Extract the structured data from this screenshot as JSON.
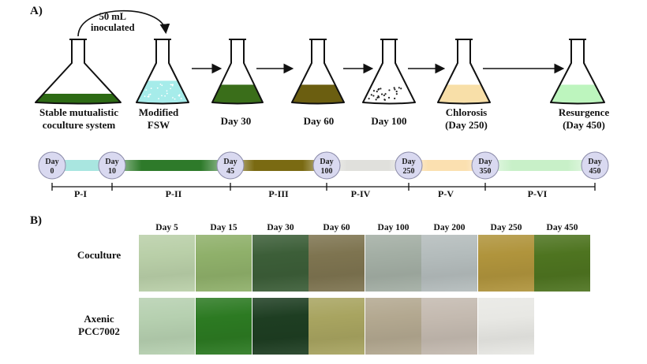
{
  "panel_a": {
    "letter": "A)",
    "inoculation_note": [
      "50 mL",
      "inoculated"
    ],
    "flasks": [
      {
        "label": [
          "Stable mutualistic",
          "coculture system"
        ],
        "fill": "#2d6a14",
        "level": 0.22,
        "speckled": false
      },
      {
        "label": [
          "Modified",
          "FSW"
        ],
        "fill": "#a6ecea",
        "level": 0.55,
        "speckled": true
      },
      {
        "label": [
          "Day 30"
        ],
        "fill": "#3a6e1a",
        "level": 0.45,
        "speckled": false
      },
      {
        "label": [
          "Day 60"
        ],
        "fill": "#6b5e10",
        "level": 0.45,
        "speckled": false
      },
      {
        "label": [
          "Day 100"
        ],
        "fill": "#ffffff",
        "level": 0.45,
        "speckled": true
      },
      {
        "label": [
          "Chlorosis",
          "(Day 250)"
        ],
        "fill": "#f8dfa8",
        "level": 0.45,
        "speckled": false
      },
      {
        "label": [
          "Resurgence",
          "(Day 450)"
        ],
        "fill": "#bdf5be",
        "level": 0.45,
        "speckled": false
      }
    ],
    "timeline": {
      "days": [
        "0",
        "10",
        "45",
        "100",
        "250",
        "350",
        "450"
      ],
      "day_prefix": "Day",
      "segment_colors": [
        "#a9e6e0",
        "#2e7a2a",
        "#7a6a12",
        "#e0e0dc",
        "#fbe0b0",
        "#c8f0c8"
      ],
      "phases": [
        "P-I",
        "P-II",
        "P-III",
        "P-IV",
        "P-V",
        "P-VI"
      ]
    }
  },
  "panel_b": {
    "letter": "B)",
    "columns": [
      "Day 5",
      "Day 15",
      "Day 30",
      "Day 60",
      "Day 100",
      "Day 200",
      "Day 250",
      "Day 450"
    ],
    "rows": [
      {
        "label": [
          "Coculture"
        ],
        "colors": [
          "#b9cfa8",
          "#8fb06a",
          "#3c5e38",
          "#7e7450",
          "#a3aea4",
          "#b4bcbc",
          "#b0943c",
          "#4e7420"
        ]
      },
      {
        "label": [
          "Axenic",
          "PCC7002"
        ],
        "colors": [
          "#b6d0b0",
          "#2c7a22",
          "#1e3e22",
          "#a8a460",
          "#b3a890",
          "#c4bab0",
          "#e8e8e4"
        ]
      }
    ]
  }
}
